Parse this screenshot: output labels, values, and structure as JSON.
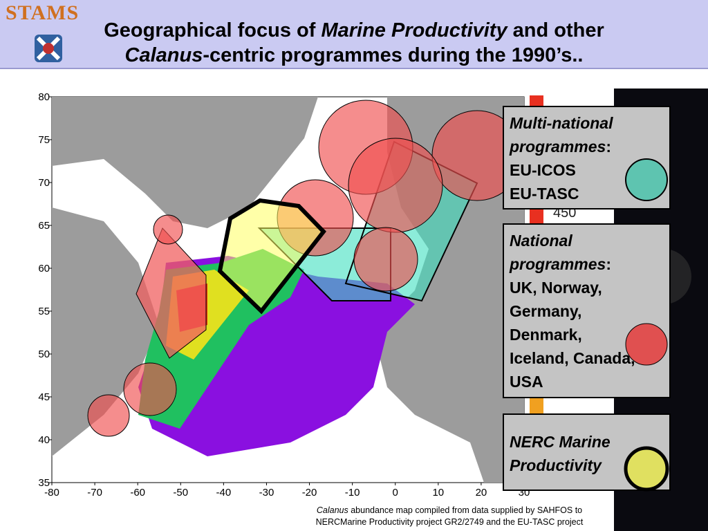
{
  "header": {
    "logo": "STAMS",
    "title_line1": [
      "Geographical focus of ",
      "Marine Productivity",
      " and other"
    ],
    "title_line2": [
      "Calanus",
      "-centric programmes during the 1990’s.."
    ]
  },
  "map": {
    "xlim": [
      -80,
      30
    ],
    "ylim": [
      35,
      80
    ],
    "xticks": [
      -80,
      -70,
      -60,
      -50,
      -40,
      -30,
      -20,
      -10,
      0,
      10,
      20,
      30
    ],
    "yticks": [
      35,
      40,
      45,
      50,
      55,
      60,
      65,
      70,
      75,
      80
    ],
    "colorbar_label": "450"
  },
  "legend": [
    {
      "title": "Multi-national programmes",
      "sep": ":",
      "items": [
        "EU-ICOS",
        "EU-TASC"
      ]
    },
    {
      "title": "National programmes",
      "sep": ":",
      "items": [
        "UK, Norway,",
        "Germany,",
        "Denmark,",
        "Iceland, Canada,",
        "USA"
      ]
    },
    {
      "title": "NERC Marine Productivity"
    }
  ],
  "caption": {
    "italic": "Calanus",
    "line1": " abundance map compiled from data supplied by SAHFOS to",
    "line2": "NERCMarine Productivity project GR2/2749 and the EU-TASC project"
  }
}
